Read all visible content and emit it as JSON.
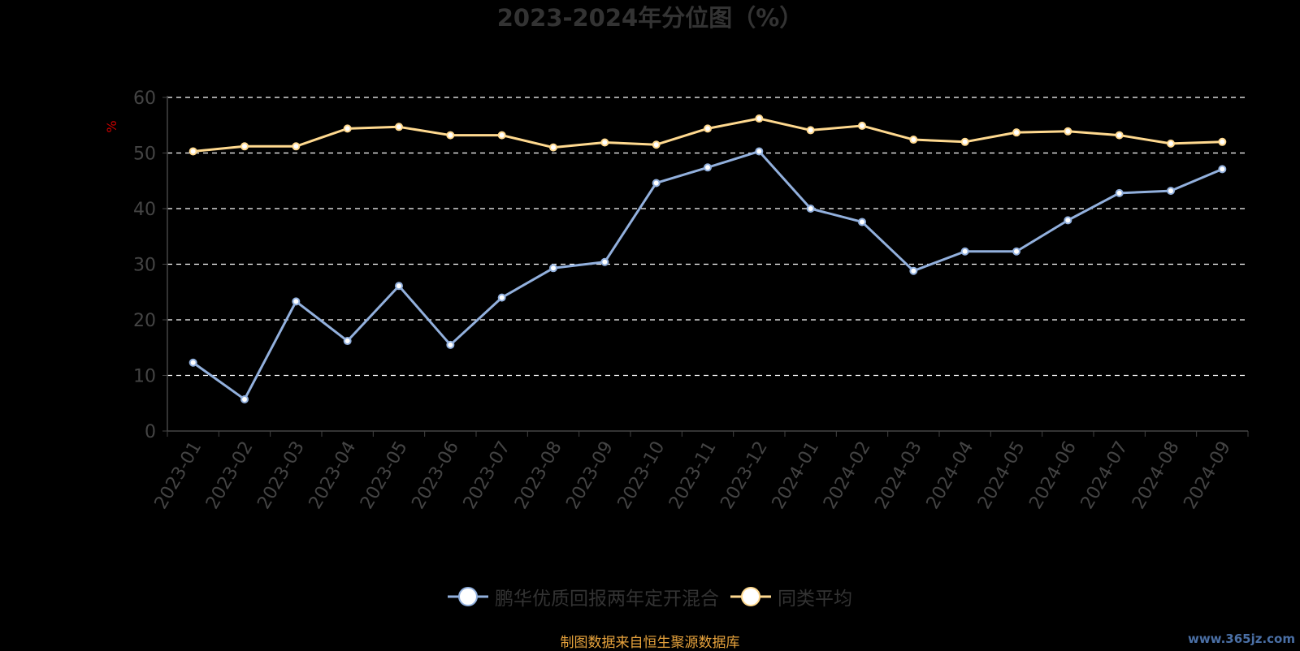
{
  "chart_data": {
    "type": "line",
    "title": "2023-2024年分位图（%）",
    "ylabel": "%",
    "xlabel": "",
    "ylim": [
      0,
      60
    ],
    "yticks": [
      0,
      10,
      20,
      30,
      40,
      50,
      60
    ],
    "grid": true,
    "legend_position": "bottom",
    "categories": [
      "2023-01",
      "2023-02",
      "2023-03",
      "2023-04",
      "2023-05",
      "2023-06",
      "2023-07",
      "2023-08",
      "2023-09",
      "2023-10",
      "2023-11",
      "2023-12",
      "2024-01",
      "2024-02",
      "2024-03",
      "2024-04",
      "2024-05",
      "2024-06",
      "2024-07",
      "2024-08",
      "2024-09"
    ],
    "series": [
      {
        "name": "鹏华优质回报两年定开混合",
        "color": "#92b0dd",
        "values": [
          12.3,
          5.7,
          23.3,
          16.2,
          26.1,
          15.5,
          24.0,
          29.3,
          30.4,
          44.6,
          47.4,
          50.3,
          40.0,
          37.6,
          28.8,
          32.3,
          32.3,
          37.9,
          42.8,
          43.2,
          47.1
        ]
      },
      {
        "name": "同类平均",
        "color": "#ffd98f",
        "values": [
          50.3,
          51.2,
          51.2,
          54.4,
          54.7,
          53.2,
          53.2,
          51.0,
          51.9,
          51.5,
          54.4,
          56.2,
          54.1,
          54.9,
          52.4,
          52.0,
          53.7,
          53.9,
          53.2,
          51.7,
          52.0
        ]
      }
    ]
  },
  "source_note": "制图数据来自恒生聚源数据库",
  "watermark": "www.365jz.com"
}
